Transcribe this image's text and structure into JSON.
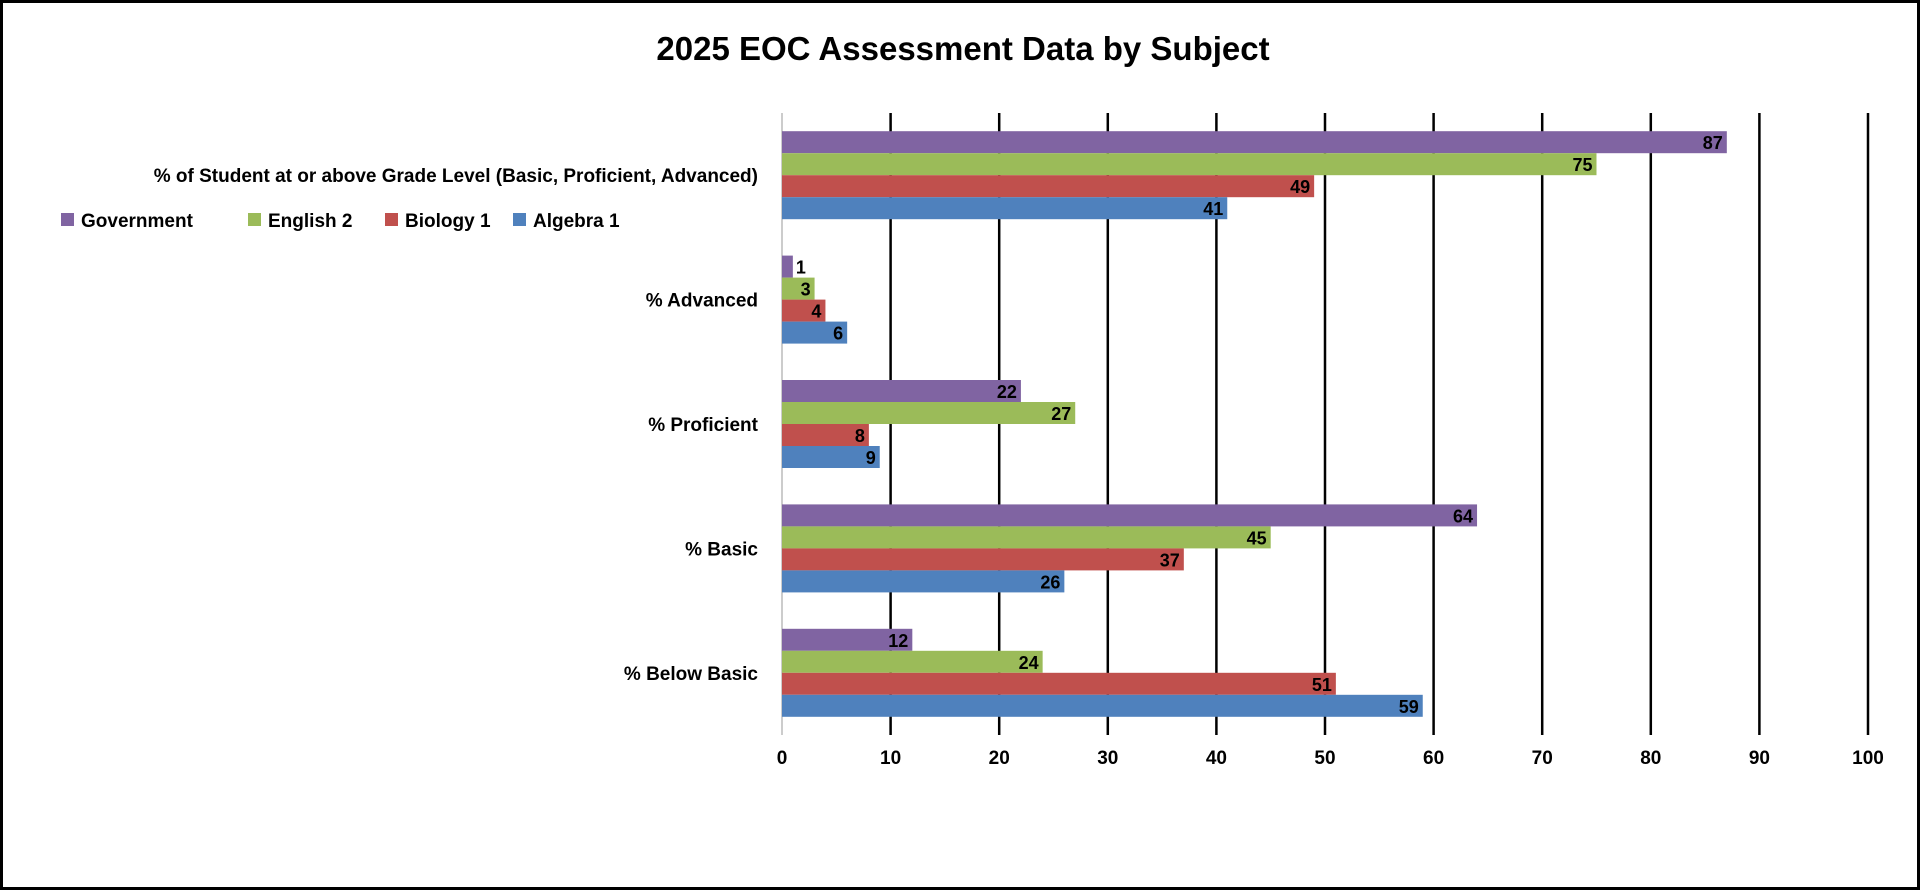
{
  "chart_data": {
    "type": "bar",
    "orientation": "horizontal",
    "title": "2025 EOC Assessment Data by Subject",
    "categories": [
      "% of Student at or above Grade Level (Basic, Proficient, Advanced)",
      "% Advanced",
      "% Proficient",
      "% Basic",
      "% Below Basic"
    ],
    "series": [
      {
        "name": "Government",
        "color": "#8064a2",
        "values": [
          87,
          1,
          22,
          64,
          12
        ]
      },
      {
        "name": "English 2",
        "color": "#9bbb59",
        "values": [
          75,
          3,
          27,
          45,
          24
        ]
      },
      {
        "name": "Biology 1",
        "color": "#c0504d",
        "values": [
          49,
          4,
          8,
          37,
          51
        ]
      },
      {
        "name": "Algebra 1",
        "color": "#4f81bd",
        "values": [
          41,
          6,
          9,
          26,
          59
        ]
      }
    ],
    "xlim": [
      0,
      100
    ],
    "xticks": [
      0,
      10,
      20,
      30,
      40,
      50,
      60,
      70,
      80,
      90,
      100
    ],
    "grid": true,
    "legend_position": "left",
    "data_labels": true
  }
}
